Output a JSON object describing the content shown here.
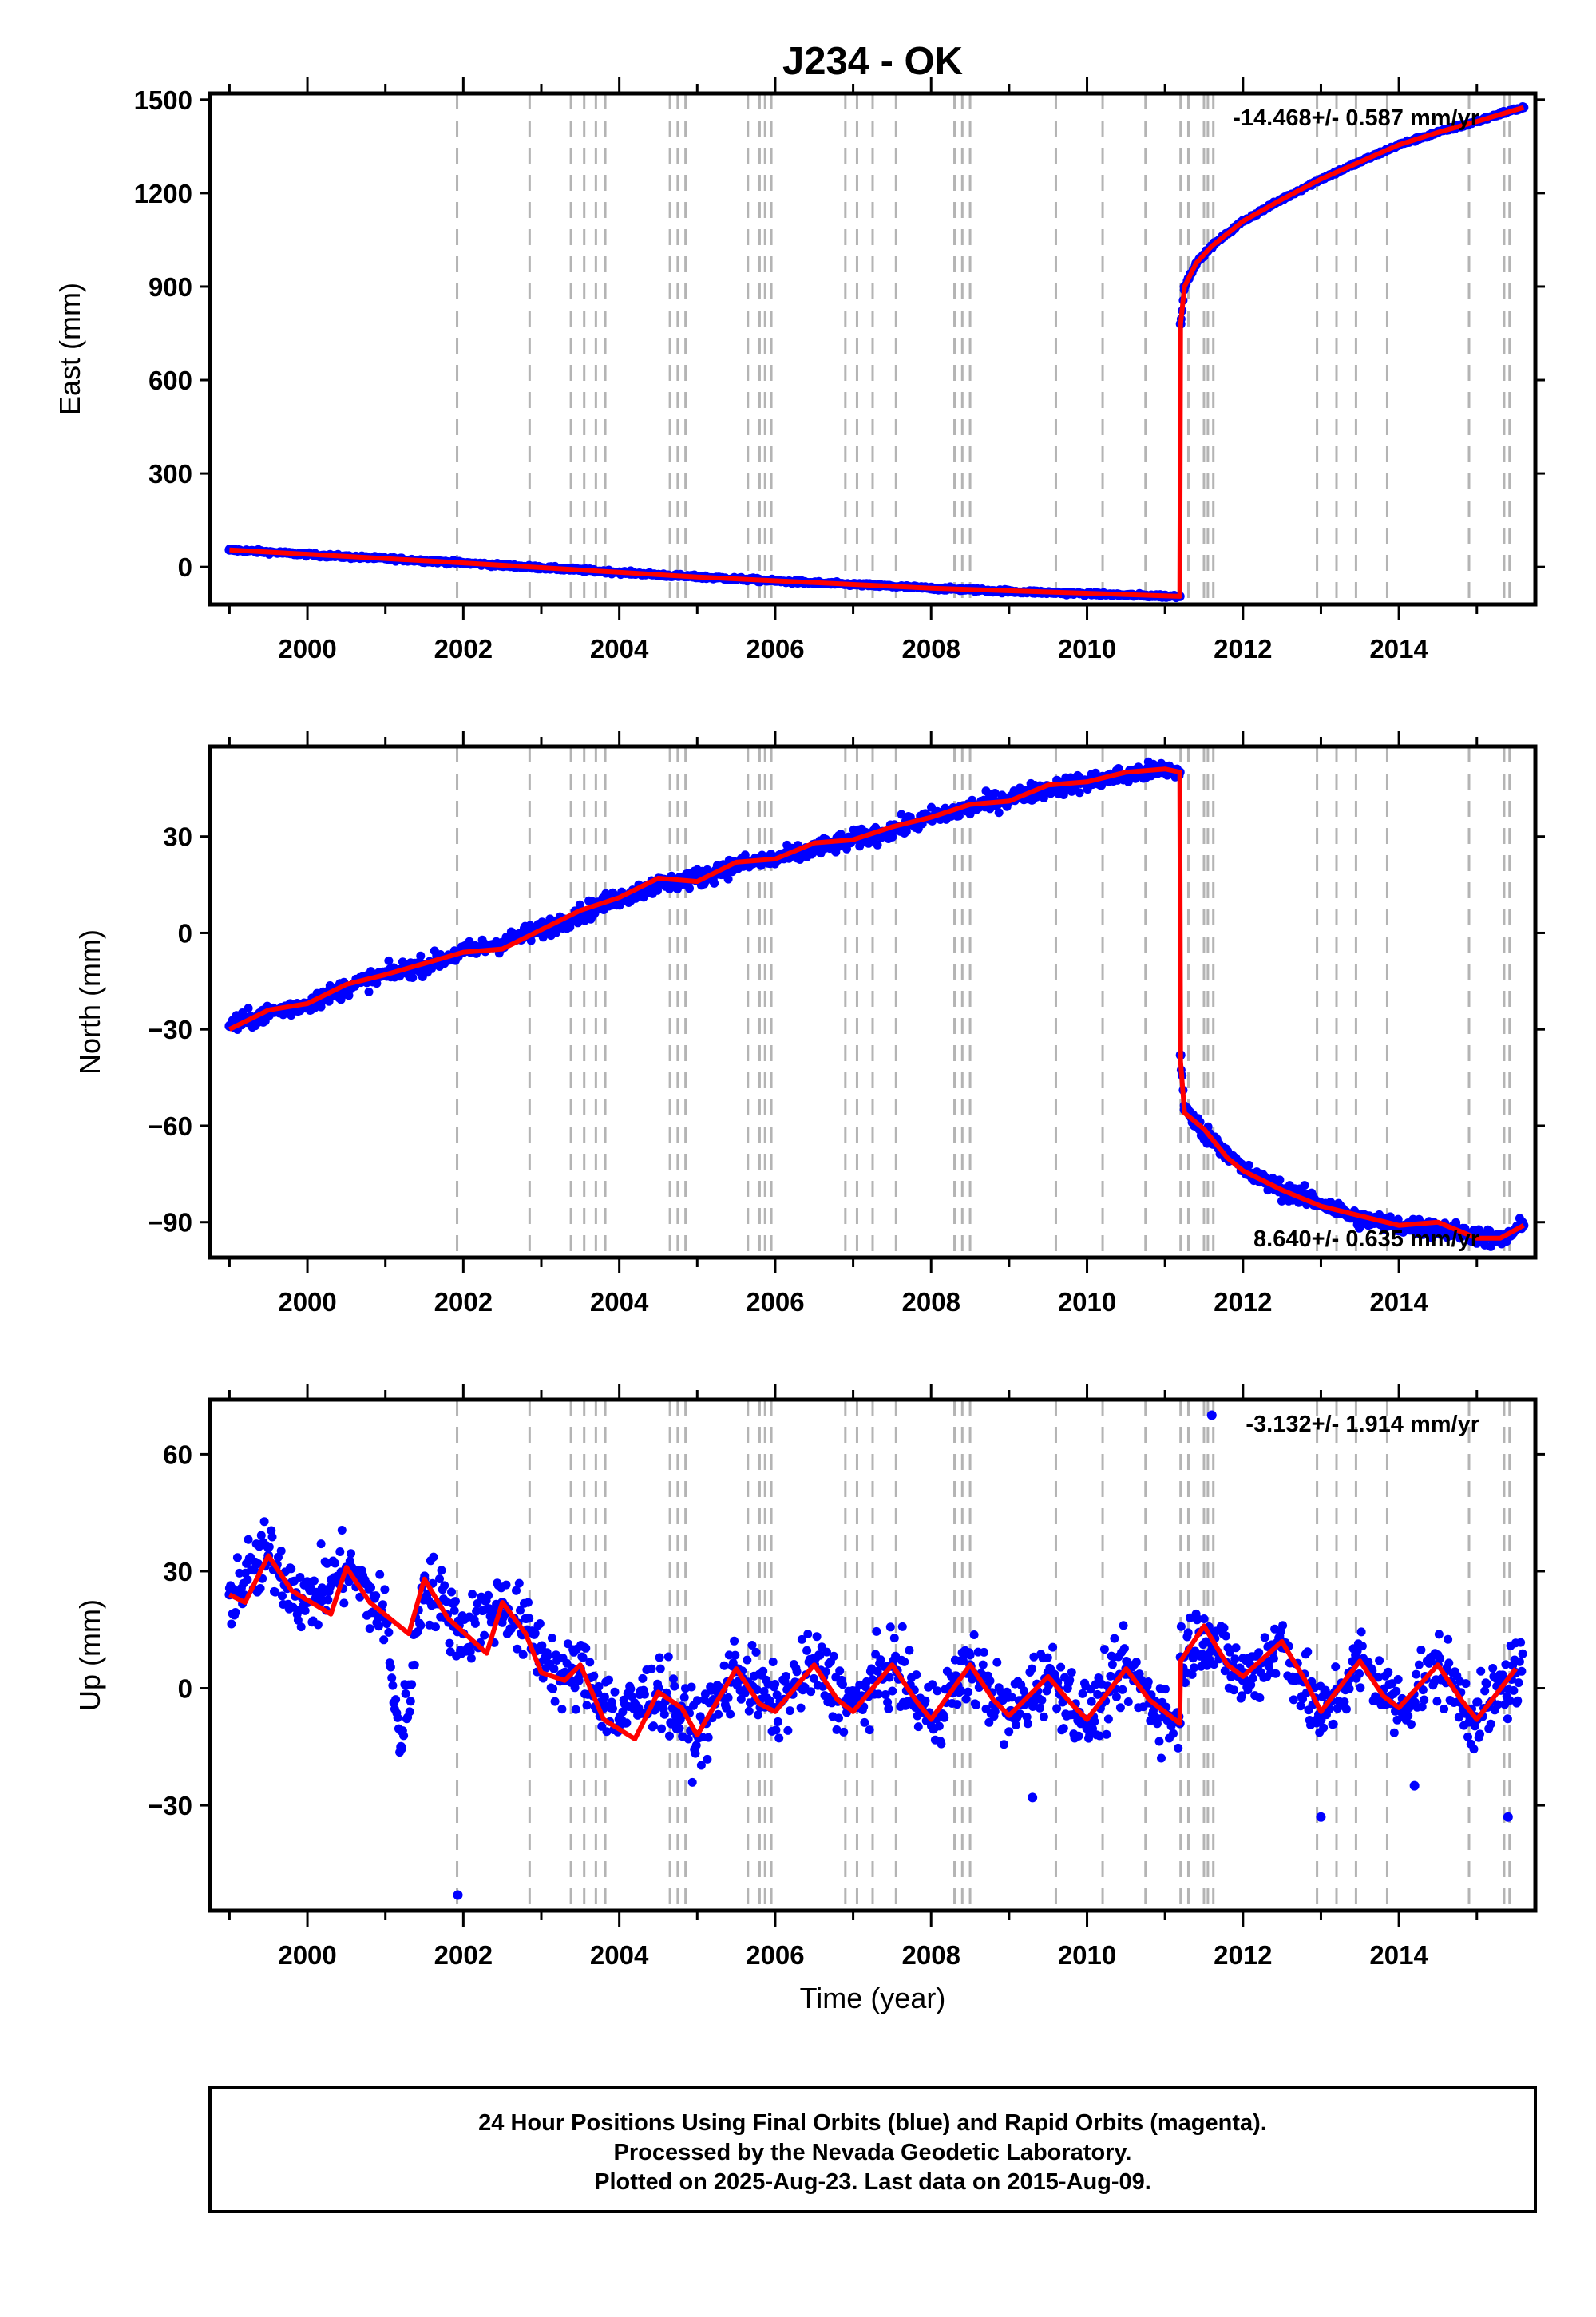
{
  "title": "J234 - OK",
  "xlabel": "Time (year)",
  "x_ticks": [
    "2000",
    "2002",
    "2004",
    "2006",
    "2008",
    "2010",
    "2012",
    "2014"
  ],
  "colors": {
    "data": "#0000ff",
    "model": "#ff0000",
    "event_lines": "#b4b4b4"
  },
  "footer": {
    "line1": "24 Hour Positions Using Final Orbits (blue) and Rapid Orbits (magenta).",
    "line2": "Processed by the Nevada Geodetic Laboratory.",
    "line3": "Plotted on 2025-Aug-23. Last data on 2015-Aug-09."
  },
  "chart_data": [
    {
      "type": "scatter",
      "panel": "east",
      "ylabel": "East (mm)",
      "rate_text": "-14.468+/- 0.587 mm/yr",
      "rate_position": "top-right",
      "xlim": [
        1998.75,
        2015.75
      ],
      "ylim": [
        -120,
        1520
      ],
      "y_ticks": [
        "0",
        "300",
        "600",
        "900",
        "1200",
        "1500"
      ],
      "grid": false,
      "event_lines_x": [
        2001.92,
        2002.85,
        2003.38,
        2003.55,
        2003.7,
        2003.82,
        2004.65,
        2004.75,
        2004.85,
        2005.65,
        2005.8,
        2005.87,
        2005.95,
        2006.9,
        2007.05,
        2007.25,
        2007.55,
        2008.3,
        2008.4,
        2008.5,
        2009.6,
        2010.2,
        2010.75,
        2011.2,
        2011.3,
        2011.5,
        2011.55,
        2011.62,
        2012.95,
        2013.2,
        2013.45,
        2013.85,
        2014.9,
        2015.35,
        2015.42
      ],
      "series": [
        {
          "role": "data",
          "values": [
            [
              1999.0,
              55
            ],
            [
              1999.5,
              48
            ],
            [
              2000.0,
              40
            ],
            [
              2000.5,
              33
            ],
            [
              2001.0,
              27
            ],
            [
              2001.5,
              20
            ],
            [
              2002.0,
              13
            ],
            [
              2002.5,
              5
            ],
            [
              2003.0,
              -2
            ],
            [
              2003.5,
              -10
            ],
            [
              2004.0,
              -17
            ],
            [
              2004.5,
              -25
            ],
            [
              2005.0,
              -32
            ],
            [
              2005.5,
              -38
            ],
            [
              2006.0,
              -45
            ],
            [
              2006.5,
              -51
            ],
            [
              2007.0,
              -56
            ],
            [
              2007.5,
              -62
            ],
            [
              2008.0,
              -68
            ],
            [
              2008.5,
              -73
            ],
            [
              2009.0,
              -78
            ],
            [
              2009.5,
              -82
            ],
            [
              2010.0,
              -86
            ],
            [
              2010.5,
              -90
            ],
            [
              2011.0,
              -93
            ],
            [
              2011.19,
              -94
            ],
            [
              2011.2,
              780
            ],
            [
              2011.25,
              900
            ],
            [
              2011.4,
              975
            ],
            [
              2011.6,
              1030
            ],
            [
              2011.8,
              1070
            ],
            [
              2012.0,
              1110
            ],
            [
              2012.5,
              1180
            ],
            [
              2013.0,
              1245
            ],
            [
              2013.5,
              1300
            ],
            [
              2014.0,
              1355
            ],
            [
              2014.5,
              1395
            ],
            [
              2015.0,
              1430
            ],
            [
              2015.3,
              1455
            ],
            [
              2015.6,
              1475
            ]
          ]
        },
        {
          "role": "model",
          "values": [
            [
              1999.0,
              55
            ],
            [
              2002.0,
              13
            ],
            [
              2005.0,
              -32
            ],
            [
              2008.0,
              -68
            ],
            [
              2011.19,
              -94
            ],
            [
              2011.2,
              780
            ],
            [
              2011.25,
              900
            ],
            [
              2011.4,
              975
            ],
            [
              2011.6,
              1030
            ],
            [
              2012.0,
              1110
            ],
            [
              2012.5,
              1180
            ],
            [
              2013.0,
              1245
            ],
            [
              2013.5,
              1300
            ],
            [
              2014.0,
              1355
            ],
            [
              2014.5,
              1395
            ],
            [
              2015.0,
              1430
            ],
            [
              2015.6,
              1475
            ]
          ]
        }
      ]
    },
    {
      "type": "scatter",
      "panel": "north",
      "ylabel": "North (mm)",
      "rate_text": "8.640+/- 0.635 mm/yr",
      "rate_position": "bottom-right",
      "xlim": [
        1998.75,
        2015.75
      ],
      "ylim": [
        -101,
        58
      ],
      "y_ticks": [
        "−90",
        "−60",
        "−30",
        "0",
        "30"
      ],
      "grid": false,
      "event_lines_x": [
        2001.92,
        2002.85,
        2003.38,
        2003.55,
        2003.7,
        2003.82,
        2004.65,
        2004.75,
        2004.85,
        2005.65,
        2005.8,
        2005.87,
        2005.95,
        2006.9,
        2007.05,
        2007.25,
        2007.55,
        2008.3,
        2008.4,
        2008.5,
        2009.6,
        2010.2,
        2010.75,
        2011.2,
        2011.3,
        2011.5,
        2011.55,
        2011.62,
        2012.95,
        2013.2,
        2013.45,
        2013.85,
        2014.9,
        2015.35,
        2015.42
      ],
      "series": [
        {
          "role": "data",
          "values": [
            [
              1999.0,
              -29
            ],
            [
              1999.5,
              -25
            ],
            [
              2000.0,
              -22
            ],
            [
              2000.5,
              -17
            ],
            [
              2001.0,
              -13
            ],
            [
              2001.5,
              -10
            ],
            [
              2002.0,
              -6
            ],
            [
              2002.5,
              -3
            ],
            [
              2003.0,
              1
            ],
            [
              2003.5,
              6
            ],
            [
              2004.0,
              11
            ],
            [
              2004.5,
              15
            ],
            [
              2005.0,
              17
            ],
            [
              2005.5,
              21
            ],
            [
              2006.0,
              23
            ],
            [
              2006.5,
              26
            ],
            [
              2007.0,
              29
            ],
            [
              2007.5,
              32
            ],
            [
              2008.0,
              36
            ],
            [
              2008.5,
              39
            ],
            [
              2009.0,
              42
            ],
            [
              2009.5,
              45
            ],
            [
              2010.0,
              47
            ],
            [
              2010.5,
              49
            ],
            [
              2011.0,
              51
            ],
            [
              2011.19,
              50
            ],
            [
              2011.2,
              -38
            ],
            [
              2011.25,
              -55
            ],
            [
              2011.5,
              -62
            ],
            [
              2011.8,
              -68
            ],
            [
              2012.0,
              -74
            ],
            [
              2012.5,
              -80
            ],
            [
              2013.0,
              -84
            ],
            [
              2013.5,
              -89
            ],
            [
              2014.0,
              -91
            ],
            [
              2014.5,
              -92
            ],
            [
              2015.0,
              -94
            ],
            [
              2015.3,
              -96
            ],
            [
              2015.6,
              -91
            ]
          ]
        },
        {
          "role": "model",
          "values": [
            [
              1999.0,
              -30
            ],
            [
              1999.5,
              -24
            ],
            [
              2000.0,
              -22
            ],
            [
              2000.5,
              -16
            ],
            [
              2001.0,
              -13
            ],
            [
              2002.0,
              -6
            ],
            [
              2002.5,
              -5
            ],
            [
              2003.0,
              1
            ],
            [
              2003.5,
              7
            ],
            [
              2004.0,
              11
            ],
            [
              2004.5,
              17
            ],
            [
              2005.0,
              16
            ],
            [
              2005.5,
              22
            ],
            [
              2006.0,
              23
            ],
            [
              2006.5,
              28
            ],
            [
              2007.0,
              29
            ],
            [
              2007.5,
              33
            ],
            [
              2008.0,
              36
            ],
            [
              2008.5,
              40
            ],
            [
              2009.0,
              41
            ],
            [
              2009.5,
              46
            ],
            [
              2010.0,
              47
            ],
            [
              2010.5,
              50
            ],
            [
              2011.0,
              51
            ],
            [
              2011.19,
              50
            ],
            [
              2011.2,
              -40
            ],
            [
              2011.25,
              -56
            ],
            [
              2011.5,
              -61
            ],
            [
              2011.8,
              -70
            ],
            [
              2012.0,
              -74
            ],
            [
              2012.5,
              -80
            ],
            [
              2013.0,
              -85
            ],
            [
              2013.5,
              -88
            ],
            [
              2014.0,
              -91
            ],
            [
              2014.5,
              -90
            ],
            [
              2015.0,
              -95
            ],
            [
              2015.3,
              -95
            ],
            [
              2015.6,
              -91
            ]
          ]
        }
      ]
    },
    {
      "type": "scatter",
      "panel": "up",
      "ylabel": "Up (mm)",
      "rate_text": "-3.132+/- 1.914 mm/yr",
      "rate_position": "top-right",
      "xlim": [
        1998.75,
        2015.75
      ],
      "ylim": [
        -57,
        74
      ],
      "y_ticks": [
        "−30",
        "0",
        "30",
        "60"
      ],
      "grid": false,
      "event_lines_x": [
        2001.92,
        2002.85,
        2003.38,
        2003.55,
        2003.7,
        2003.82,
        2004.65,
        2004.75,
        2004.85,
        2005.65,
        2005.8,
        2005.87,
        2005.95,
        2006.9,
        2007.05,
        2007.25,
        2007.55,
        2008.3,
        2008.4,
        2008.5,
        2009.6,
        2010.2,
        2010.75,
        2011.2,
        2011.3,
        2011.5,
        2011.55,
        2011.62,
        2012.95,
        2013.2,
        2013.45,
        2013.85,
        2014.9,
        2015.35,
        2015.42
      ],
      "series": [
        {
          "role": "data",
          "values": [
            [
              1999.0,
              24
            ],
            [
              1999.5,
              34
            ],
            [
              2000.0,
              22
            ],
            [
              2000.5,
              31
            ],
            [
              2001.0,
              18
            ],
            [
              2001.5,
              28
            ],
            [
              2002.0,
              14
            ],
            [
              2002.5,
              22
            ],
            [
              2003.0,
              10
            ],
            [
              2003.3,
              2
            ],
            [
              2003.5,
              5
            ],
            [
              2004.0,
              -8
            ],
            [
              2004.5,
              0
            ],
            [
              2005.0,
              -12
            ],
            [
              2005.5,
              5
            ],
            [
              2006.0,
              -5
            ],
            [
              2006.5,
              6
            ],
            [
              2007.0,
              -5
            ],
            [
              2007.5,
              6
            ],
            [
              2008.0,
              -8
            ],
            [
              2008.5,
              6
            ],
            [
              2009.0,
              -7
            ],
            [
              2009.5,
              4
            ],
            [
              2010.0,
              -8
            ],
            [
              2010.5,
              5
            ],
            [
              2011.0,
              -7
            ],
            [
              2011.19,
              -9
            ],
            [
              2011.2,
              8
            ],
            [
              2011.5,
              15
            ],
            [
              2012.0,
              2
            ],
            [
              2012.5,
              12
            ],
            [
              2013.0,
              -8
            ],
            [
              2013.5,
              7
            ],
            [
              2014.0,
              -5
            ],
            [
              2014.5,
              6
            ],
            [
              2015.0,
              -8
            ],
            [
              2015.5,
              4
            ],
            [
              2001.93,
              -53
            ],
            [
              2011.6,
              70
            ],
            [
              2001.2,
              -15
            ],
            [
              2009.3,
              -28
            ],
            [
              2014.2,
              -25
            ],
            [
              2015.4,
              -33
            ],
            [
              2013.0,
              -33
            ]
          ]
        },
        {
          "role": "model",
          "values": [
            [
              1999.0,
              24
            ],
            [
              1999.2,
              22
            ],
            [
              1999.5,
              34
            ],
            [
              1999.8,
              25
            ],
            [
              2000.3,
              19
            ],
            [
              2000.5,
              31
            ],
            [
              2000.8,
              22
            ],
            [
              2001.3,
              14
            ],
            [
              2001.5,
              28
            ],
            [
              2001.8,
              18
            ],
            [
              2002.3,
              9
            ],
            [
              2002.5,
              22
            ],
            [
              2002.8,
              14
            ],
            [
              2003.0,
              4
            ],
            [
              2003.3,
              2
            ],
            [
              2003.5,
              6
            ],
            [
              2003.8,
              -8
            ],
            [
              2004.2,
              -13
            ],
            [
              2004.5,
              -1
            ],
            [
              2004.8,
              -5
            ],
            [
              2005.0,
              -12
            ],
            [
              2005.5,
              5
            ],
            [
              2005.8,
              -4
            ],
            [
              2006.0,
              -6
            ],
            [
              2006.5,
              6
            ],
            [
              2006.8,
              -3
            ],
            [
              2007.0,
              -6
            ],
            [
              2007.5,
              6
            ],
            [
              2007.8,
              -3
            ],
            [
              2008.0,
              -8
            ],
            [
              2008.5,
              6
            ],
            [
              2008.8,
              -3
            ],
            [
              2009.0,
              -7
            ],
            [
              2009.5,
              3
            ],
            [
              2009.8,
              -4
            ],
            [
              2010.0,
              -8
            ],
            [
              2010.5,
              5
            ],
            [
              2010.8,
              -3
            ],
            [
              2011.19,
              -9
            ],
            [
              2011.2,
              7
            ],
            [
              2011.5,
              16
            ],
            [
              2011.8,
              6
            ],
            [
              2012.0,
              3
            ],
            [
              2012.5,
              12
            ],
            [
              2012.8,
              2
            ],
            [
              2013.0,
              -6
            ],
            [
              2013.5,
              7
            ],
            [
              2013.8,
              -2
            ],
            [
              2014.0,
              -5
            ],
            [
              2014.5,
              6
            ],
            [
              2014.8,
              -3
            ],
            [
              2015.0,
              -8
            ],
            [
              2015.5,
              5
            ]
          ]
        }
      ]
    }
  ]
}
